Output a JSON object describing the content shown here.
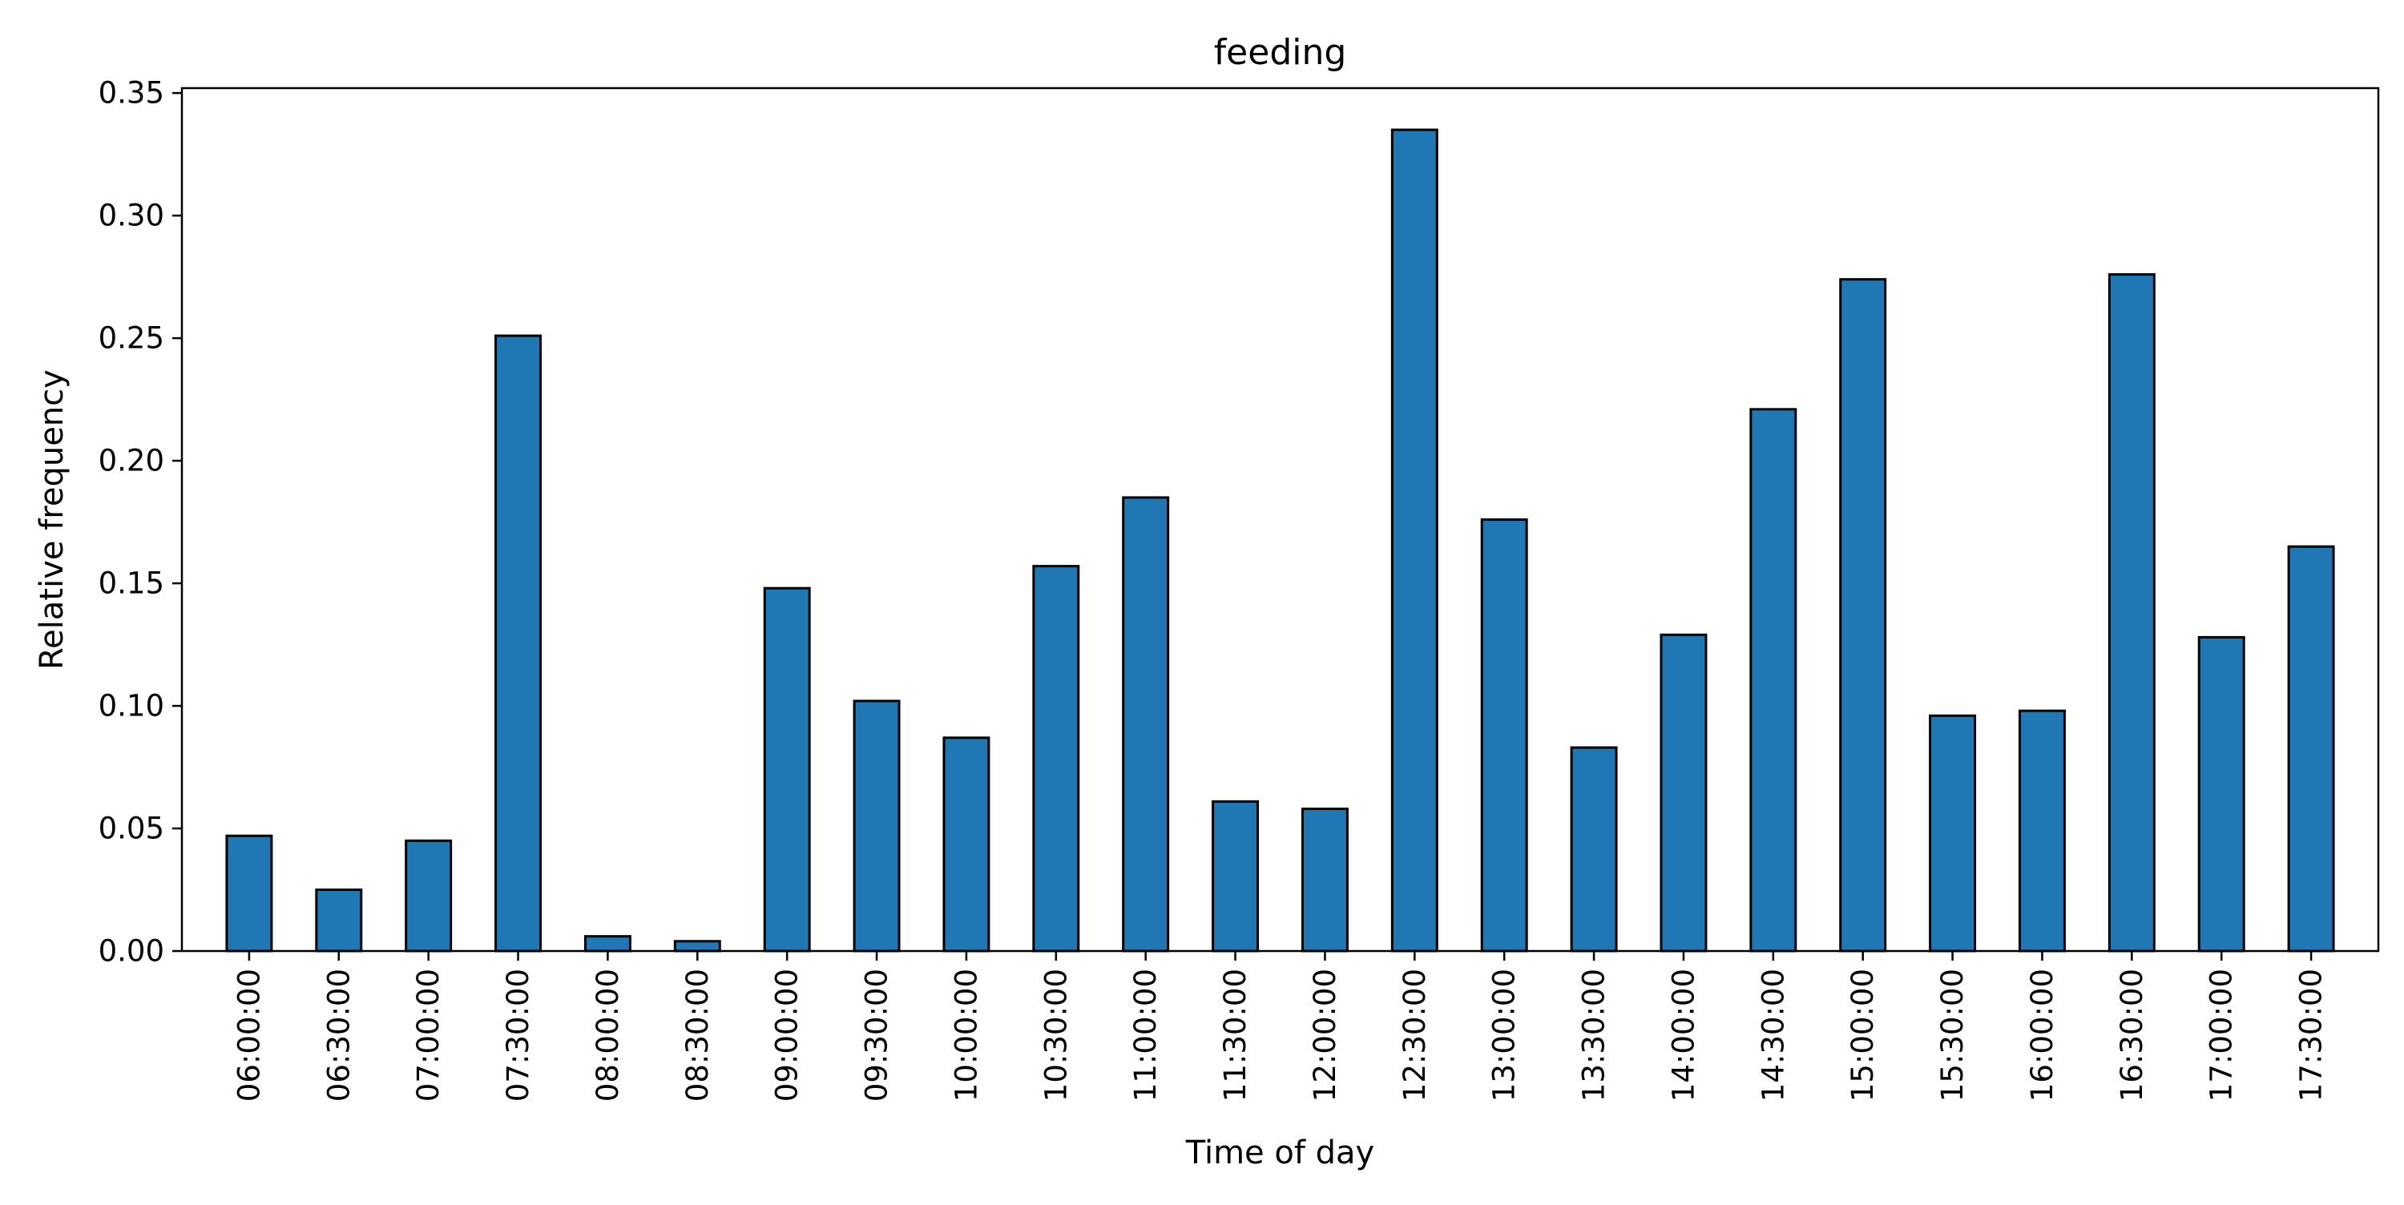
{
  "chart_data": {
    "type": "bar",
    "title": "feeding",
    "xlabel": "Time of day",
    "ylabel": "Relative frequency",
    "categories": [
      "06:00:00",
      "06:30:00",
      "07:00:00",
      "07:30:00",
      "08:00:00",
      "08:30:00",
      "09:00:00",
      "09:30:00",
      "10:00:00",
      "10:30:00",
      "11:00:00",
      "11:30:00",
      "12:00:00",
      "12:30:00",
      "13:00:00",
      "13:30:00",
      "14:00:00",
      "14:30:00",
      "15:00:00",
      "15:30:00",
      "16:00:00",
      "16:30:00",
      "17:00:00",
      "17:30:00"
    ],
    "values": [
      0.047,
      0.025,
      0.045,
      0.251,
      0.006,
      0.004,
      0.148,
      0.102,
      0.087,
      0.157,
      0.185,
      0.061,
      0.058,
      0.335,
      0.176,
      0.083,
      0.129,
      0.221,
      0.274,
      0.096,
      0.098,
      0.276,
      0.128,
      0.165
    ],
    "ylim": [
      0,
      0.352
    ],
    "yticks": [
      "0.00",
      "0.05",
      "0.10",
      "0.15",
      "0.20",
      "0.25",
      "0.30",
      "0.35"
    ],
    "grid": false,
    "legend": "none",
    "bar_color": "#1f77b4",
    "edge_color": "#000000"
  }
}
